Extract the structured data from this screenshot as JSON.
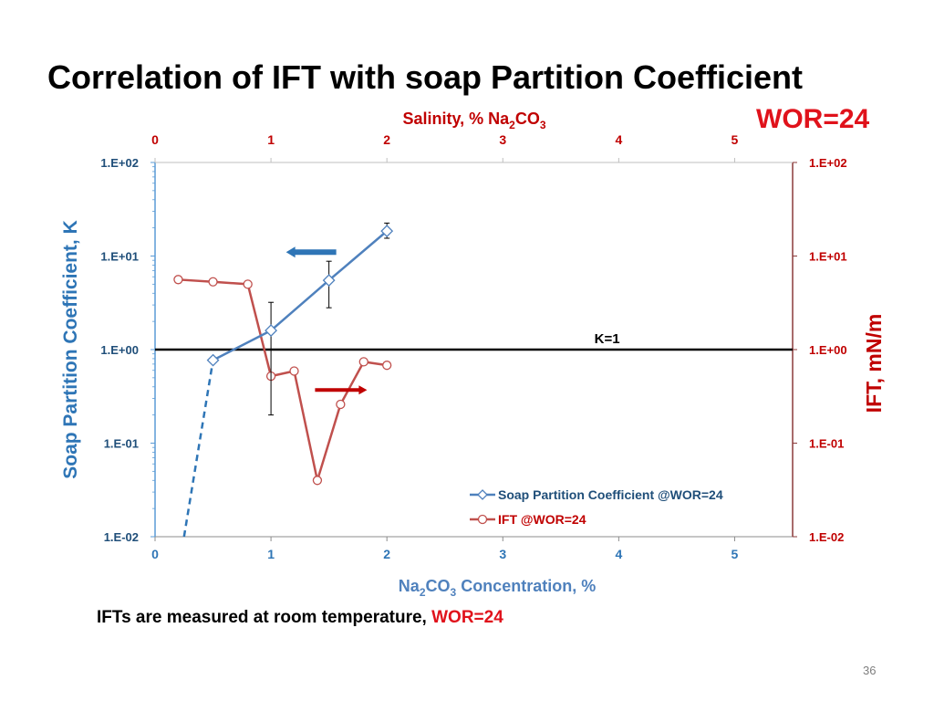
{
  "slide": {
    "title": "Correlation of IFT with soap Partition Coefficient",
    "wor_badge": "WOR=24",
    "footnote_main": "IFTs are measured at room temperature, ",
    "footnote_highlight": "WOR=24",
    "page_number": "36"
  },
  "colors": {
    "blue": "#2e75b6",
    "series_blue": "#4f81bd",
    "red": "#c0504d",
    "dark_red": "#c00000",
    "bright_red": "#e0121b",
    "ref_line": "#000000"
  },
  "chart_data": {
    "type": "line",
    "x_axis": {
      "label_parts": [
        "Na",
        "2",
        "CO",
        "3",
        " Concentration, %"
      ],
      "range": [
        0,
        5.5
      ],
      "ticks": [
        "0",
        "1",
        "2",
        "3",
        "4",
        "5"
      ]
    },
    "x2_axis": {
      "label_parts": [
        "Salinity, % Na",
        "2",
        "CO",
        "3"
      ],
      "range": [
        0,
        5.5
      ],
      "ticks": [
        "0",
        "1",
        "2",
        "3",
        "4",
        "5"
      ]
    },
    "y_left": {
      "label": "Soap Partition Coefficient, K",
      "scale": "log",
      "range": [
        0.01,
        100
      ],
      "ticks": [
        "1.E-02",
        "1.E-01",
        "1.E+00",
        "1.E+01",
        "1.E+02"
      ]
    },
    "y_right": {
      "label": "IFT, mN/m",
      "scale": "log",
      "range": [
        0.01,
        100
      ],
      "ticks": [
        "1.E-02",
        "1.E-01",
        "1.E+00",
        "1.E+01",
        "1.E+02"
      ]
    },
    "series": [
      {
        "name": "Soap Partition Coefficient @WOR=24",
        "axis": "left",
        "marker": "diamond",
        "x": [
          0.5,
          1.0,
          1.5,
          2.0
        ],
        "y": [
          0.77,
          1.6,
          5.5,
          18.5
        ],
        "error_low": [
          null,
          0.2,
          2.8,
          15.5
        ],
        "error_high": [
          null,
          3.2,
          8.8,
          22.5
        ]
      },
      {
        "name": "IFT @WOR=24",
        "axis": "right",
        "marker": "circle",
        "x": [
          0.2,
          0.5,
          0.8,
          1.0,
          1.2,
          1.4,
          1.6,
          1.8,
          2.0
        ],
        "y": [
          5.6,
          5.3,
          5.0,
          0.52,
          0.59,
          0.04,
          0.26,
          0.74,
          0.68
        ]
      }
    ],
    "extrapolation": {
      "x": [
        0.25,
        0.5
      ],
      "y": [
        0.01,
        0.77
      ]
    },
    "reference_line": {
      "y": 1.0,
      "label": "K=1"
    },
    "annotations": [
      {
        "type": "arrow",
        "direction": "left",
        "points_to": "left axis",
        "at": {
          "x": 1.5,
          "y": 11
        }
      },
      {
        "type": "arrow",
        "direction": "right",
        "points_to": "right axis",
        "at": {
          "x": 1.75,
          "y": 0.37
        }
      }
    ],
    "legend": "bottom-right"
  }
}
